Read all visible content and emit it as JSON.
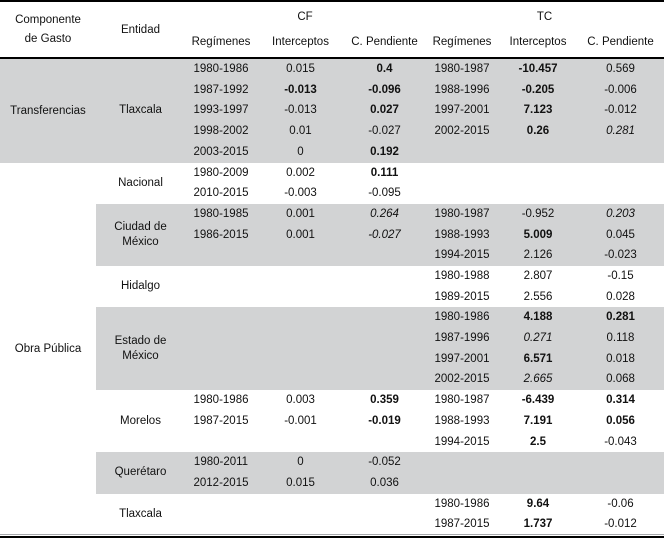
{
  "header": {
    "componente_line1": "Componente",
    "componente_line2": "de Gasto",
    "entidad": "Entidad",
    "cf": "CF",
    "tc": "TC",
    "sub": {
      "regimenes": "Regímenes",
      "interceptos": "Interceptos",
      "pendiente": "C. Pendiente"
    }
  },
  "colors": {
    "shade": "#d2d3d4",
    "border": "#000000",
    "thin_rule": "#a7a9ac"
  },
  "componentes": [
    {
      "label": "Transferencias",
      "from": 0,
      "to": 0
    },
    {
      "label": "Obra Pública",
      "from": 1,
      "to": 7
    }
  ],
  "sections": [
    {
      "entidad": "Tlaxcala",
      "entidad_lines": [
        "Tlaxcala"
      ],
      "shade": "gray",
      "shade_full_row": true,
      "rows": 5,
      "cf": [
        [
          "1980-1986",
          [
            "0.015",
            ""
          ],
          [
            "0.4",
            "b"
          ]
        ],
        [
          "1987-1992",
          [
            "-0.013",
            "b"
          ],
          [
            "-0.096",
            "b"
          ]
        ],
        [
          "1993-1997",
          [
            "-0.013",
            ""
          ],
          [
            "0.027",
            "b"
          ]
        ],
        [
          "1998-2002",
          [
            "0.01",
            ""
          ],
          [
            "-0.027",
            ""
          ]
        ],
        [
          "2003-2015",
          [
            "0",
            ""
          ],
          [
            "0.192",
            "b"
          ]
        ]
      ],
      "tc": [
        [
          "1980-1987",
          [
            "-10.457",
            "b"
          ],
          [
            "0.569",
            ""
          ]
        ],
        [
          "1988-1996",
          [
            "-0.205",
            "b"
          ],
          [
            "-0.006",
            ""
          ]
        ],
        [
          "1997-2001",
          [
            "7.123",
            "b"
          ],
          [
            "-0.012",
            ""
          ]
        ],
        [
          "2002-2015",
          [
            "0.26",
            "b"
          ],
          [
            "0.281",
            "i"
          ]
        ]
      ]
    },
    {
      "entidad": "Nacional",
      "entidad_lines": [
        "Nacional"
      ],
      "shade": "white",
      "shade_full_row": false,
      "rows": 2,
      "cf": [
        [
          "1980-2009",
          [
            "0.002",
            ""
          ],
          [
            "0.111",
            "b"
          ]
        ],
        [
          "2010-2015",
          [
            "-0.003",
            ""
          ],
          [
            "-0.095",
            ""
          ]
        ]
      ],
      "tc": []
    },
    {
      "entidad": "Ciudad de México",
      "entidad_lines": [
        "Ciudad de",
        "México"
      ],
      "shade": "gray",
      "shade_full_row": false,
      "rows": 3,
      "cf": [
        [
          "1980-1985",
          [
            "0.001",
            ""
          ],
          [
            "0.264",
            "i"
          ]
        ],
        [
          "1986-2015",
          [
            "0.001",
            ""
          ],
          [
            "-0.027",
            "i"
          ]
        ]
      ],
      "tc": [
        [
          "1980-1987",
          [
            "-0.952",
            ""
          ],
          [
            "0.203",
            "i"
          ]
        ],
        [
          "1988-1993",
          [
            "5.009",
            "b"
          ],
          [
            "0.045",
            ""
          ]
        ],
        [
          "1994-2015",
          [
            "2.126",
            ""
          ],
          [
            "-0.023",
            ""
          ]
        ]
      ]
    },
    {
      "entidad": "Hidalgo",
      "entidad_lines": [
        "Hidalgo"
      ],
      "shade": "white",
      "shade_full_row": false,
      "rows": 2,
      "cf": [],
      "tc": [
        [
          "1980-1988",
          [
            "2.807",
            ""
          ],
          [
            "-0.15",
            ""
          ]
        ],
        [
          "1989-2015",
          [
            "2.556",
            ""
          ],
          [
            "0.028",
            ""
          ]
        ]
      ]
    },
    {
      "entidad": "Estado de México",
      "entidad_lines": [
        "Estado de",
        "México"
      ],
      "shade": "gray",
      "shade_full_row": false,
      "rows": 4,
      "cf": [],
      "tc": [
        [
          "1980-1986",
          [
            "4.188",
            "b"
          ],
          [
            "0.281",
            "b"
          ]
        ],
        [
          "1987-1996",
          [
            "0.271",
            "i"
          ],
          [
            "0.118",
            ""
          ]
        ],
        [
          "1997-2001",
          [
            "6.571",
            "b"
          ],
          [
            "0.018",
            ""
          ]
        ],
        [
          "2002-2015",
          [
            "2.665",
            "i"
          ],
          [
            "0.068",
            ""
          ]
        ]
      ]
    },
    {
      "entidad": "Morelos",
      "entidad_lines": [
        "Morelos"
      ],
      "shade": "white",
      "shade_full_row": false,
      "rows": 3,
      "cf": [
        [
          "1980-1986",
          [
            "0.003",
            ""
          ],
          [
            "0.359",
            "b"
          ]
        ],
        [
          "1987-2015",
          [
            "-0.001",
            ""
          ],
          [
            "-0.019",
            "b"
          ]
        ]
      ],
      "tc": [
        [
          "1980-1987",
          [
            "-6.439",
            "b"
          ],
          [
            "0.314",
            "b"
          ]
        ],
        [
          "1988-1993",
          [
            "7.191",
            "b"
          ],
          [
            "0.056",
            "b"
          ]
        ],
        [
          "1994-2015",
          [
            "2.5",
            "b"
          ],
          [
            "-0.043",
            ""
          ]
        ]
      ]
    },
    {
      "entidad": "Querétaro",
      "entidad_lines": [
        "Querétaro"
      ],
      "shade": "gray",
      "shade_full_row": false,
      "rows": 2,
      "cf": [
        [
          "1980-2011",
          [
            "0",
            ""
          ],
          [
            "-0.052",
            ""
          ]
        ],
        [
          "2012-2015",
          [
            "0.015",
            ""
          ],
          [
            "0.036",
            ""
          ]
        ]
      ],
      "tc": []
    },
    {
      "entidad": "Tlaxcala",
      "entidad_lines": [
        "Tlaxcala"
      ],
      "shade": "white",
      "shade_full_row": false,
      "rows": 2,
      "cf": [],
      "tc": [
        [
          "1980-1986",
          [
            "9.64",
            "b"
          ],
          [
            "-0.06",
            ""
          ]
        ],
        [
          "1987-2015",
          [
            "1.737",
            "b"
          ],
          [
            "-0.012",
            ""
          ]
        ]
      ]
    }
  ]
}
